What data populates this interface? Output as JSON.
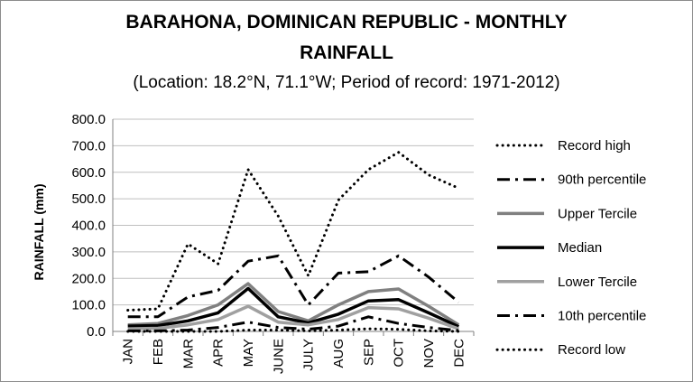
{
  "chart_data": {
    "type": "line",
    "title_line1": "BARAHONA, DOMINICAN REPUBLIC - MONTHLY",
    "title_line2": "RAINFALL",
    "subtitle": "(Location: 18.2°N, 71.1°W; Period of record: 1971-2012)",
    "xlabel": "",
    "ylabel": "RAINFALL (mm)",
    "ylim": [
      0,
      800
    ],
    "yticks": [
      "0.0",
      "100.0",
      "200.0",
      "300.0",
      "400.0",
      "500.0",
      "600.0",
      "700.0",
      "800.0"
    ],
    "grid": "horizontal",
    "legend_position": "right",
    "categories": [
      "JAN",
      "FEB",
      "MAR",
      "APR",
      "MAY",
      "JUNE",
      "JULY",
      "AUG",
      "SEP",
      "OCT",
      "NOV",
      "DEC"
    ],
    "series": [
      {
        "name": "Record high",
        "style": "dotted",
        "color": "#000000",
        "values": [
          80,
          85,
          330,
          255,
          610,
          435,
          210,
          495,
          610,
          675,
          590,
          540
        ]
      },
      {
        "name": "90th percentile",
        "style": "dash-dot",
        "color": "#000000",
        "values": [
          55,
          55,
          130,
          155,
          265,
          285,
          100,
          220,
          225,
          285,
          205,
          110
        ]
      },
      {
        "name": "Upper Tercile",
        "style": "solid",
        "color": "#808080",
        "values": [
          25,
          30,
          60,
          100,
          180,
          75,
          40,
          100,
          150,
          160,
          95,
          25
        ]
      },
      {
        "name": "Median",
        "style": "solid-thick",
        "color": "#000000",
        "values": [
          20,
          22,
          40,
          70,
          162,
          55,
          32,
          65,
          115,
          120,
          70,
          18
        ]
      },
      {
        "name": "Lower Tercile",
        "style": "solid",
        "color": "#a0a0a0",
        "values": [
          10,
          12,
          25,
          45,
          95,
          35,
          25,
          45,
          90,
          85,
          50,
          10
        ]
      },
      {
        "name": "10th percentile",
        "style": "dash-dot",
        "color": "#000000",
        "values": [
          2,
          2,
          5,
          15,
          35,
          15,
          8,
          20,
          55,
          30,
          15,
          3
        ]
      },
      {
        "name": "Record low",
        "style": "dotted",
        "color": "#000000",
        "values": [
          0,
          0,
          0,
          0,
          5,
          5,
          2,
          5,
          10,
          8,
          2,
          0
        ]
      }
    ]
  }
}
